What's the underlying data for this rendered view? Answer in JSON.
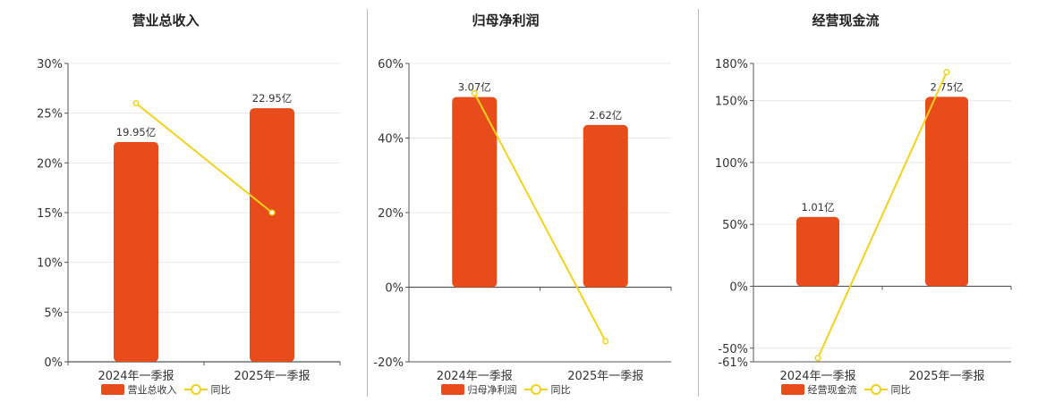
{
  "colors": {
    "bar": "#E84C1A",
    "line": "#F2D21B"
  },
  "chart_data": [
    {
      "type": "bar",
      "title": "营业总收入",
      "categories": [
        "2024年一季报",
        "2025年一季报"
      ],
      "ylim": [
        0,
        30
      ],
      "yticks": [
        0,
        5,
        10,
        15,
        20,
        25,
        30
      ],
      "tick_suffix": "%",
      "series": [
        {
          "name": "营业总收入",
          "type": "bar",
          "values": [
            22.1,
            25.5
          ],
          "labels": [
            "19.95亿",
            "22.95亿"
          ]
        },
        {
          "name": "同比",
          "type": "line",
          "values": [
            26.0,
            15.0
          ]
        }
      ],
      "grid": true,
      "legend": "bottom"
    },
    {
      "type": "bar",
      "title": "归母净利润",
      "categories": [
        "2024年一季报",
        "2025年一季报"
      ],
      "ylim": [
        -20,
        60
      ],
      "yticks": [
        -20,
        0,
        20,
        40,
        60
      ],
      "tick_suffix": "%",
      "series": [
        {
          "name": "归母净利润",
          "type": "bar",
          "values": [
            51,
            43.5
          ],
          "labels": [
            "3.07亿",
            "2.62亿"
          ]
        },
        {
          "name": "同比",
          "type": "line",
          "values": [
            52,
            -14.5
          ]
        }
      ],
      "grid": true,
      "legend": "bottom"
    },
    {
      "type": "bar",
      "title": "经营现金流",
      "categories": [
        "2024年一季报",
        "2025年一季报"
      ],
      "ylim": [
        -61,
        180
      ],
      "yticks": [
        -61,
        -50,
        0,
        50,
        100,
        150,
        180
      ],
      "tick_suffix": "%",
      "series": [
        {
          "name": "经营现金流",
          "type": "bar",
          "values": [
            56,
            153
          ],
          "labels": [
            "1.01亿",
            "2.75亿"
          ]
        },
        {
          "name": "同比",
          "type": "line",
          "values": [
            -58,
            173
          ]
        }
      ],
      "grid": true,
      "legend": "bottom"
    }
  ]
}
